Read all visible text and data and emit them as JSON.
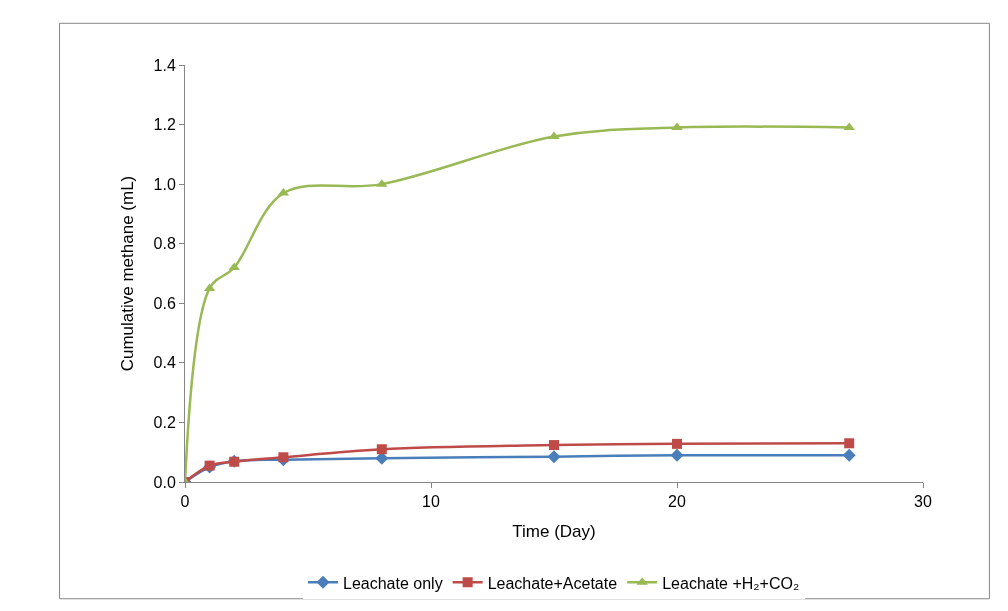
{
  "chart_data": {
    "type": "line",
    "xlabel": "Time (Day)",
    "ylabel": "Cumulative methane (mL)",
    "x": [
      0,
      1,
      2,
      4,
      8,
      15,
      20,
      27
    ],
    "series": [
      {
        "name": "Leachate only",
        "color": "#4a7ebb",
        "marker": "diamond",
        "values": [
          0,
          0.05,
          0.07,
          0.075,
          0.08,
          0.085,
          0.09,
          0.09
        ]
      },
      {
        "name": "Leachate+Acetate",
        "color": "#be4b48",
        "marker": "square",
        "values": [
          0,
          0.055,
          0.068,
          0.083,
          0.11,
          0.124,
          0.128,
          0.13
        ]
      },
      {
        "name": "Leachate +H₂+CO₂",
        "color": "#98b954",
        "marker": "triangle",
        "values": [
          0,
          0.65,
          0.72,
          0.97,
          1.0,
          1.16,
          1.19,
          1.19
        ]
      }
    ],
    "xlim": [
      0,
      30
    ],
    "xticks": [
      0,
      10,
      20,
      30
    ],
    "ylim": [
      0,
      1.4
    ],
    "yticks": [
      {
        "value": 0,
        "label": "0.0"
      },
      {
        "value": 0.2,
        "label": "0.2"
      },
      {
        "value": 0.4,
        "label": "0.4"
      },
      {
        "value": 0.6,
        "label": "0.6"
      },
      {
        "value": 0.8,
        "label": "0.8"
      },
      {
        "value": 1.0,
        "label": "1.0"
      },
      {
        "value": 1.2,
        "label": "1.2"
      },
      {
        "value": 1.4,
        "label": "1.4"
      }
    ],
    "legend": "bottom",
    "line_style": "solid"
  }
}
